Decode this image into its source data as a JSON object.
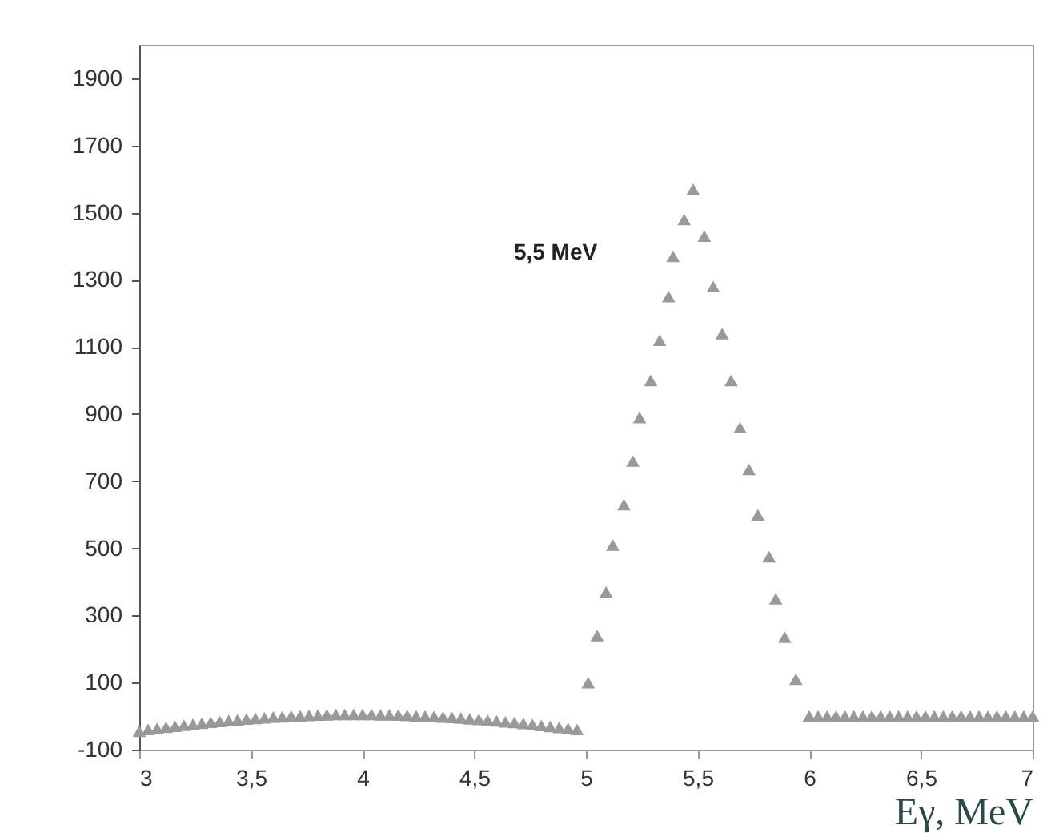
{
  "chart_data": {
    "type": "scatter",
    "xlabel": "Eγ, MeV",
    "marker": "triangle",
    "grid": false,
    "xlim": [
      3,
      7
    ],
    "xticks": [
      3,
      {
        "value": 3.5,
        "label": "3,5"
      },
      4,
      {
        "value": 4.5,
        "label": "4,5"
      },
      5,
      {
        "value": 5.5,
        "label": "5,5"
      },
      6,
      {
        "value": 6.5,
        "label": "6,5"
      },
      7
    ],
    "ylim": [
      -100,
      2000
    ],
    "yticks": [
      -100,
      100,
      300,
      500,
      700,
      900,
      1100,
      1300,
      1500,
      1700,
      1900
    ],
    "annotations": [
      "5,5 MeV"
    ],
    "series": [
      {
        "color": "#999999",
        "x": [
          3,
          3.04,
          3.08,
          3.12,
          3.16,
          3.2,
          3.24,
          3.28,
          3.32,
          3.36,
          3.4,
          3.44,
          3.48,
          3.52,
          3.56,
          3.6,
          3.64,
          3.68,
          3.72,
          3.76,
          3.8,
          3.84,
          3.88,
          3.92,
          3.96,
          4,
          4.04,
          4.08,
          4.12,
          4.16,
          4.2,
          4.24,
          4.28,
          4.32,
          4.36,
          4.4,
          4.44,
          4.48,
          4.52,
          4.56,
          4.6,
          4.64,
          4.68,
          4.72,
          4.76,
          4.8,
          4.84,
          4.88,
          4.92,
          4.96,
          5.01,
          5.05,
          5.09,
          5.12,
          5.17,
          5.21,
          5.24,
          5.29,
          5.33,
          5.37,
          5.39,
          5.44,
          5.48,
          5.53,
          5.57,
          5.61,
          5.65,
          5.69,
          5.73,
          5.77,
          5.82,
          5.85,
          5.89,
          5.94,
          6,
          6.04,
          6.08,
          6.12,
          6.16,
          6.2,
          6.24,
          6.28,
          6.32,
          6.36,
          6.4,
          6.44,
          6.48,
          6.52,
          6.56,
          6.6,
          6.64,
          6.68,
          6.72,
          6.76,
          6.8,
          6.84,
          6.88,
          6.92,
          6.96,
          7
        ],
        "values": [
          -45,
          -40,
          -37,
          -33,
          -30,
          -27,
          -24,
          -21,
          -18,
          -16,
          -13,
          -11,
          -9,
          -7,
          -5,
          -3,
          -2,
          0,
          1,
          2,
          3,
          4,
          5,
          5,
          5,
          5,
          5,
          4,
          4,
          3,
          2,
          1,
          0,
          -1,
          -3,
          -4,
          -6,
          -8,
          -10,
          -12,
          -14,
          -17,
          -19,
          -22,
          -25,
          -28,
          -31,
          -34,
          -37,
          -40,
          100,
          240,
          370,
          510,
          630,
          760,
          890,
          1000,
          1120,
          1250,
          1370,
          1480,
          1570,
          1430,
          1280,
          1140,
          1000,
          860,
          735,
          600,
          475,
          350,
          235,
          110,
          0,
          0,
          0,
          0,
          0,
          0,
          0,
          0,
          0,
          0,
          0,
          0,
          0,
          0,
          0,
          0,
          0,
          0,
          0,
          0,
          0,
          0,
          0,
          0,
          0,
          0
        ]
      }
    ]
  }
}
